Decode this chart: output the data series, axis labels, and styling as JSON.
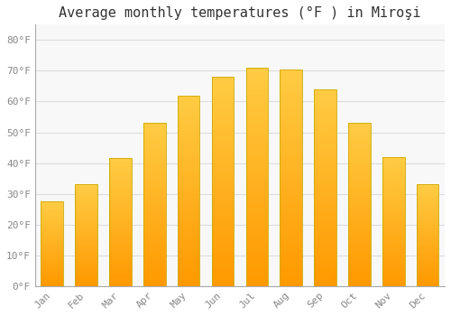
{
  "title": "Average monthly temperatures (°F ) in Miroşi",
  "months": [
    "Jan",
    "Feb",
    "Mar",
    "Apr",
    "May",
    "Jun",
    "Jul",
    "Aug",
    "Sep",
    "Oct",
    "Nov",
    "Dec"
  ],
  "values": [
    27.5,
    33,
    41.5,
    53,
    62,
    68,
    71,
    70.5,
    64,
    53,
    42,
    33
  ],
  "bar_color_top": "#FFCC44",
  "bar_color_bottom": "#FF9900",
  "bar_edge_color": "#CCAA00",
  "background_color": "#FFFFFF",
  "plot_bg_color": "#F8F8F8",
  "grid_color": "#DDDDDD",
  "yticks": [
    0,
    10,
    20,
    30,
    40,
    50,
    60,
    70,
    80
  ],
  "ylim": [
    0,
    85
  ],
  "tick_label_color": "#888888",
  "title_color": "#333333",
  "title_fontsize": 11
}
